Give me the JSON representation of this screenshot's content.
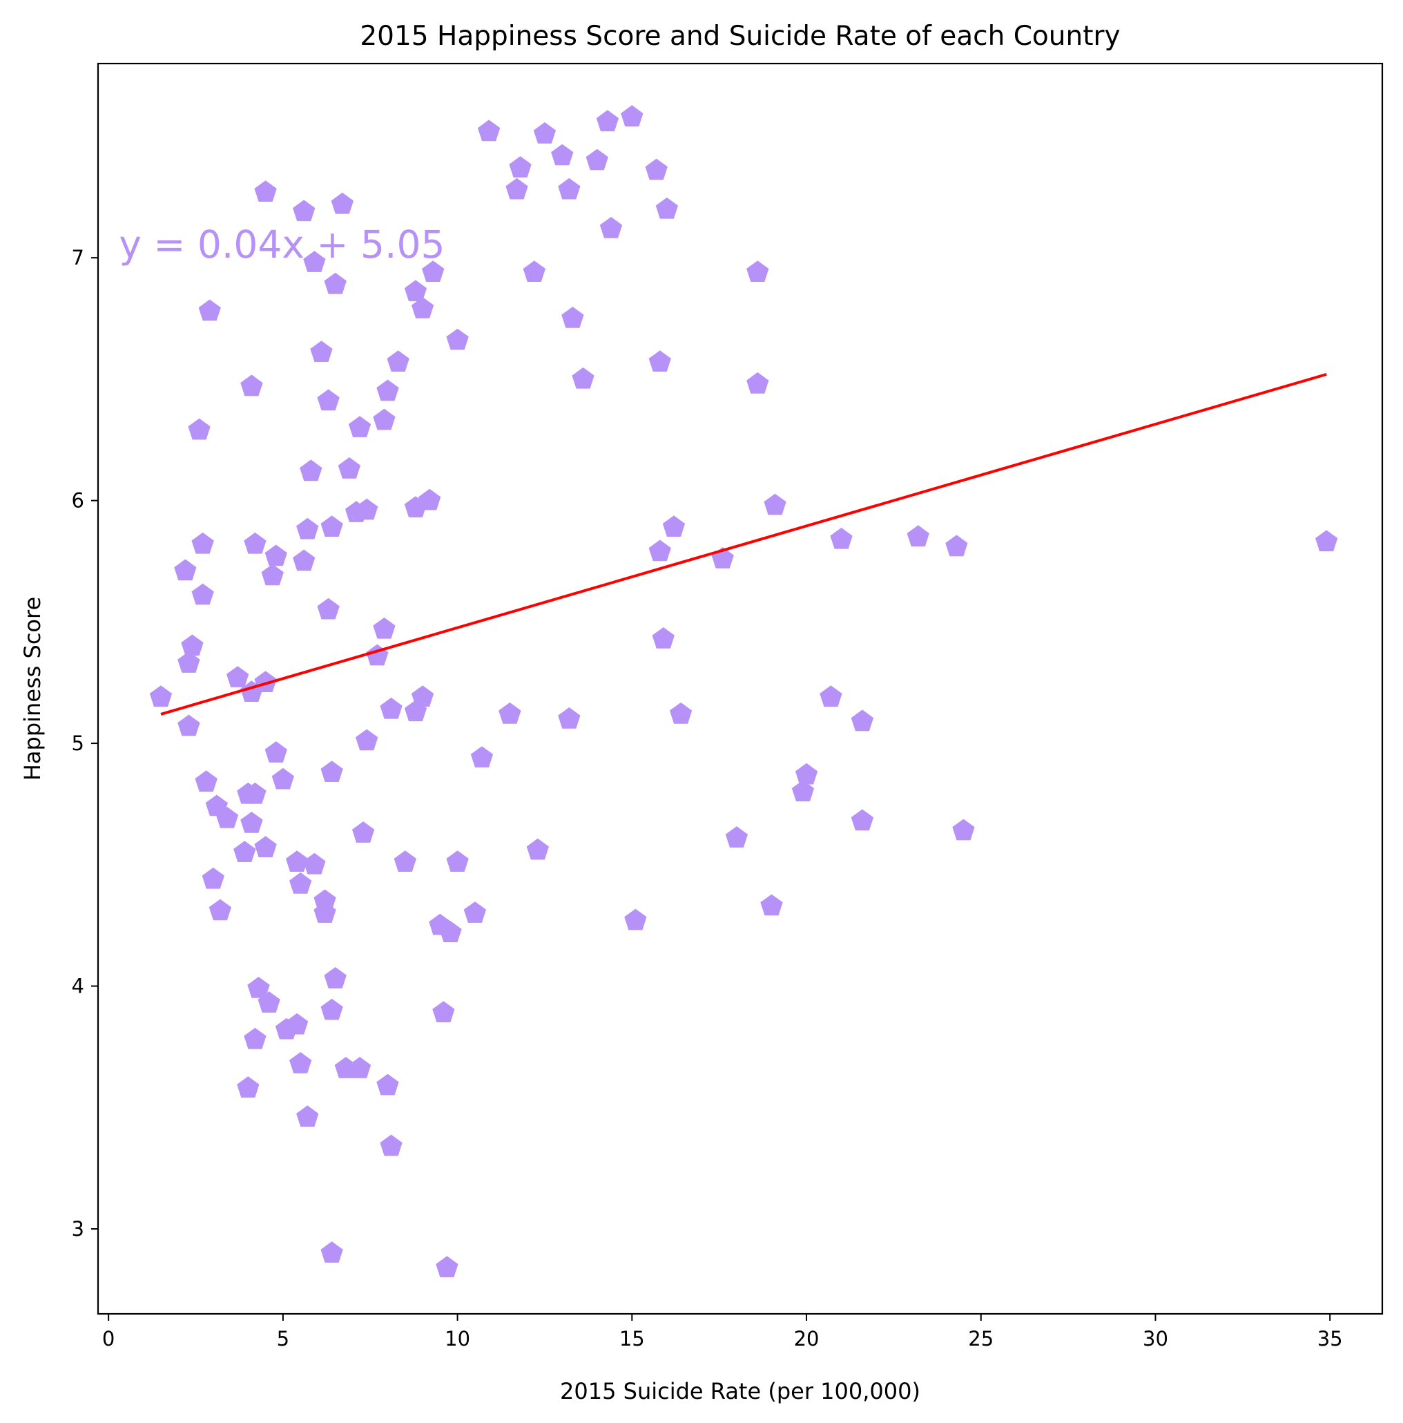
{
  "chart_data": {
    "type": "scatter",
    "title": "2015 Happiness Score and Suicide Rate of each Country",
    "xlabel": "2015 Suicide Rate (per 100,000)",
    "ylabel": "Happiness Score",
    "xlim": [
      -0.3,
      36.5
    ],
    "ylim": [
      2.65,
      7.8
    ],
    "xticks": [
      0,
      5,
      10,
      15,
      20,
      25,
      30,
      35
    ],
    "yticks": [
      3,
      4,
      5,
      6,
      7
    ],
    "grid": false,
    "marker_color": "#b591f8",
    "marker_shape": "pentagon",
    "regression": {
      "equation": "y = 0.04x + 5.05",
      "slope": 0.04,
      "intercept": 5.05,
      "x_range": [
        1.5,
        34.9
      ],
      "y_range": [
        5.12,
        6.52
      ],
      "line_color": "#ff0000",
      "label_x": 0.3,
      "label_y": 7.0
    },
    "points": [
      [
        1.5,
        5.19
      ],
      [
        2.2,
        5.71
      ],
      [
        2.3,
        5.33
      ],
      [
        2.4,
        5.4
      ],
      [
        2.3,
        5.07
      ],
      [
        2.6,
        6.29
      ],
      [
        2.7,
        5.82
      ],
      [
        2.7,
        5.61
      ],
      [
        2.8,
        4.84
      ],
      [
        2.9,
        6.78
      ],
      [
        3.0,
        4.44
      ],
      [
        3.1,
        4.74
      ],
      [
        3.2,
        4.31
      ],
      [
        3.4,
        4.69
      ],
      [
        3.7,
        5.27
      ],
      [
        3.9,
        4.55
      ],
      [
        4.0,
        4.79
      ],
      [
        4.0,
        3.58
      ],
      [
        4.1,
        6.47
      ],
      [
        4.1,
        4.67
      ],
      [
        4.1,
        5.21
      ],
      [
        4.2,
        4.79
      ],
      [
        4.2,
        5.82
      ],
      [
        4.2,
        3.78
      ],
      [
        4.3,
        3.99
      ],
      [
        4.5,
        7.27
      ],
      [
        4.5,
        5.25
      ],
      [
        4.5,
        4.57
      ],
      [
        4.6,
        3.93
      ],
      [
        4.7,
        5.69
      ],
      [
        4.8,
        5.77
      ],
      [
        4.8,
        4.96
      ],
      [
        5.0,
        4.85
      ],
      [
        5.1,
        3.82
      ],
      [
        5.4,
        3.84
      ],
      [
        5.4,
        4.51
      ],
      [
        5.5,
        4.42
      ],
      [
        5.5,
        3.68
      ],
      [
        5.6,
        5.75
      ],
      [
        5.6,
        7.19
      ],
      [
        5.7,
        5.88
      ],
      [
        5.7,
        3.46
      ],
      [
        5.8,
        6.12
      ],
      [
        5.9,
        6.98
      ],
      [
        5.9,
        4.5
      ],
      [
        6.1,
        6.61
      ],
      [
        6.2,
        4.35
      ],
      [
        6.2,
        4.3
      ],
      [
        6.3,
        5.55
      ],
      [
        6.3,
        6.41
      ],
      [
        6.4,
        5.89
      ],
      [
        6.4,
        4.88
      ],
      [
        6.4,
        3.9
      ],
      [
        6.4,
        2.9
      ],
      [
        6.5,
        6.89
      ],
      [
        6.5,
        4.03
      ],
      [
        6.7,
        7.22
      ],
      [
        6.8,
        3.66
      ],
      [
        6.9,
        6.13
      ],
      [
        7.1,
        5.95
      ],
      [
        7.2,
        6.3
      ],
      [
        7.2,
        3.66
      ],
      [
        7.3,
        4.63
      ],
      [
        7.4,
        5.01
      ],
      [
        7.4,
        5.96
      ],
      [
        7.7,
        5.36
      ],
      [
        7.9,
        5.47
      ],
      [
        7.9,
        6.33
      ],
      [
        8.0,
        6.45
      ],
      [
        8.0,
        3.59
      ],
      [
        8.1,
        5.14
      ],
      [
        8.1,
        3.34
      ],
      [
        8.3,
        6.57
      ],
      [
        8.5,
        4.51
      ],
      [
        8.8,
        6.86
      ],
      [
        8.8,
        5.97
      ],
      [
        8.8,
        5.13
      ],
      [
        9.0,
        5.19
      ],
      [
        9.0,
        6.79
      ],
      [
        9.2,
        6.0
      ],
      [
        9.3,
        6.94
      ],
      [
        9.5,
        4.25
      ],
      [
        9.6,
        3.89
      ],
      [
        9.7,
        2.84
      ],
      [
        9.8,
        4.22
      ],
      [
        10.0,
        6.66
      ],
      [
        10.0,
        4.51
      ],
      [
        10.5,
        4.3
      ],
      [
        10.7,
        4.94
      ],
      [
        10.9,
        7.52
      ],
      [
        11.5,
        5.12
      ],
      [
        11.7,
        7.28
      ],
      [
        11.8,
        7.37
      ],
      [
        12.2,
        6.94
      ],
      [
        12.3,
        4.56
      ],
      [
        12.5,
        7.51
      ],
      [
        13.0,
        7.42
      ],
      [
        13.2,
        7.28
      ],
      [
        13.2,
        5.1
      ],
      [
        13.3,
        6.75
      ],
      [
        13.6,
        6.5
      ],
      [
        14.0,
        7.4
      ],
      [
        14.3,
        7.56
      ],
      [
        14.4,
        7.12
      ],
      [
        15.0,
        7.58
      ],
      [
        15.1,
        4.27
      ],
      [
        15.7,
        7.36
      ],
      [
        15.8,
        6.57
      ],
      [
        15.8,
        5.79
      ],
      [
        15.9,
        5.43
      ],
      [
        16.0,
        7.2
      ],
      [
        16.2,
        5.89
      ],
      [
        16.4,
        5.12
      ],
      [
        17.6,
        5.76
      ],
      [
        18.0,
        4.61
      ],
      [
        18.6,
        6.94
      ],
      [
        18.6,
        6.48
      ],
      [
        19.0,
        4.33
      ],
      [
        19.1,
        5.98
      ],
      [
        19.9,
        4.8
      ],
      [
        20.0,
        4.87
      ],
      [
        20.7,
        5.19
      ],
      [
        21.0,
        5.84
      ],
      [
        21.6,
        5.09
      ],
      [
        21.6,
        4.68
      ],
      [
        23.2,
        5.85
      ],
      [
        24.3,
        5.81
      ],
      [
        24.5,
        4.64
      ],
      [
        34.9,
        5.83
      ]
    ]
  }
}
